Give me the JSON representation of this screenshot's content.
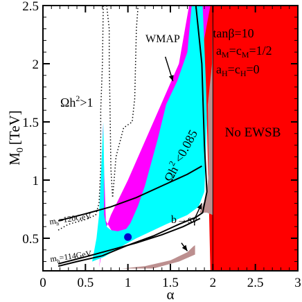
{
  "chart_data": {
    "type": "area",
    "xlabel": "α",
    "ylabel": "M₀ [TeV]",
    "ylabel_base": "M",
    "ylabel_sub": "0",
    "ylabel_unit": "[TeV]",
    "xlim": [
      0,
      3
    ],
    "ylim": [
      0.22,
      2.5
    ],
    "x_ticks": [
      0,
      0.5,
      1,
      1.5,
      2,
      2.5,
      3
    ],
    "x_tick_labels": [
      "0",
      "0.5",
      "1",
      "1.5",
      "2",
      "2.5",
      "3"
    ],
    "y_ticks": [
      0.5,
      1,
      1.5,
      2,
      2.5
    ],
    "y_tick_labels": [
      "0.5",
      "1",
      "1.5",
      "2",
      "2.5"
    ],
    "grid": false,
    "colors": {
      "no_ewsb": "#ff0000",
      "wmap_band": "#00ffff",
      "wmap_edge": "#ff00ff",
      "bsgamma": "#bc8f8f",
      "marker": "#0000cc",
      "lines": "#000000"
    },
    "annotations": {
      "params_line1": "tanβ=10",
      "params_line2": "aₘ=cₘ=1/2",
      "params_line2_a": "a",
      "params_line2_sub1": "M",
      "params_line2_mid": "=c",
      "params_line2_sub2": "M",
      "params_line2_end": "=1/2",
      "params_line3_a": "a",
      "params_line3_sub1": "H",
      "params_line3_mid": "=c",
      "params_line3_sub2": "H",
      "params_line3_end": "=0",
      "no_ewsb": "No EWSB",
      "wmap": "WMAP",
      "omega_gt1": "Ωh",
      "omega_gt1_sup": "2",
      "omega_gt1_end": ">1",
      "omega_lt": "Ωh",
      "omega_lt_sup": "2",
      "omega_lt_end": "<0.085",
      "bsg": "b→sγ",
      "mh120_m": "m",
      "mh120_sub": "h",
      "mh120_end": "=120GeV",
      "mh114_m": "m",
      "mh114_sub": "h",
      "mh114_end": "=114GeV"
    },
    "regions": {
      "no_ewsb": [
        [
          2.0,
          0.22
        ],
        [
          3.0,
          0.22
        ],
        [
          3.0,
          2.5
        ],
        [
          2.0,
          2.5
        ]
      ],
      "no_ewsb_notch": [
        [
          1.87,
          2.5
        ],
        [
          2.0,
          2.5
        ],
        [
          2.0,
          0.22
        ],
        [
          1.97,
          0.22
        ],
        [
          1.95,
          0.9
        ],
        [
          1.93,
          1.5
        ],
        [
          1.9,
          2.0
        ]
      ],
      "bsgamma_upper": [
        [
          1.84,
          0.72
        ],
        [
          1.92,
          0.85
        ],
        [
          1.95,
          1.05
        ],
        [
          1.94,
          1.65
        ],
        [
          1.99,
          2.0
        ],
        [
          2.0,
          2.5
        ],
        [
          2.0,
          0.7
        ],
        [
          1.93,
          0.72
        ]
      ],
      "bsgamma_lower": [
        [
          0.93,
          0.24
        ],
        [
          1.2,
          0.26
        ],
        [
          1.5,
          0.31
        ],
        [
          1.7,
          0.38
        ],
        [
          1.77,
          0.43
        ],
        [
          1.79,
          0.44
        ],
        [
          1.79,
          0.36
        ],
        [
          1.6,
          0.3
        ],
        [
          1.3,
          0.24
        ]
      ],
      "magenta_outer": [
        [
          0.66,
          0.25
        ],
        [
          0.72,
          0.6
        ],
        [
          0.7,
          1.5
        ],
        [
          0.74,
          0.65
        ],
        [
          0.82,
          0.55
        ],
        [
          0.94,
          0.52
        ],
        [
          0.99,
          0.52
        ],
        [
          1.05,
          0.6
        ],
        [
          1.15,
          0.67
        ],
        [
          1.3,
          0.85
        ],
        [
          1.55,
          1.3
        ],
        [
          1.75,
          1.75
        ],
        [
          1.87,
          2.1
        ],
        [
          1.97,
          2.5
        ],
        [
          1.72,
          2.5
        ],
        [
          1.6,
          2.0
        ],
        [
          1.45,
          1.75
        ],
        [
          1.3,
          1.5
        ],
        [
          1.15,
          1.25
        ],
        [
          1.0,
          1.0
        ],
        [
          0.9,
          0.85
        ],
        [
          0.8,
          0.7
        ],
        [
          0.75,
          0.6
        ]
      ],
      "cyan_band": [
        [
          0.58,
          0.3
        ],
        [
          0.72,
          0.34
        ],
        [
          0.95,
          0.44
        ],
        [
          1.1,
          0.5
        ],
        [
          1.45,
          0.62
        ],
        [
          1.7,
          0.7
        ],
        [
          1.83,
          0.77
        ],
        [
          1.9,
          0.9
        ],
        [
          1.93,
          1.5
        ],
        [
          1.92,
          1.8
        ],
        [
          1.88,
          2.5
        ],
        [
          1.75,
          2.5
        ],
        [
          1.7,
          2.1
        ],
        [
          1.58,
          1.85
        ],
        [
          1.45,
          1.65
        ],
        [
          1.35,
          1.35
        ],
        [
          1.2,
          0.95
        ],
        [
          1.12,
          0.78
        ],
        [
          1.03,
          0.63
        ],
        [
          0.98,
          0.58
        ],
        [
          0.88,
          0.56
        ],
        [
          0.8,
          0.57
        ],
        [
          0.75,
          0.6
        ],
        [
          0.72,
          0.7
        ],
        [
          0.72,
          1.1
        ],
        [
          0.71,
          1.5
        ],
        [
          0.68,
          1.0
        ],
        [
          0.66,
          0.7
        ],
        [
          0.63,
          0.5
        ]
      ]
    },
    "curves": {
      "omega_lt": [
        [
          0.18,
          0.26
        ],
        [
          0.4,
          0.3
        ],
        [
          0.7,
          0.35
        ],
        [
          1.0,
          0.44
        ],
        [
          1.3,
          0.52
        ],
        [
          1.6,
          0.62
        ],
        [
          1.8,
          0.68
        ],
        [
          1.88,
          0.72
        ],
        [
          1.93,
          0.9
        ],
        [
          1.9,
          1.3
        ],
        [
          1.87,
          2.0
        ],
        [
          1.8,
          2.5
        ]
      ],
      "mh120": [
        [
          0.18,
          0.65
        ],
        [
          0.5,
          0.71
        ],
        [
          0.8,
          0.77
        ],
        [
          1.1,
          0.85
        ],
        [
          1.4,
          0.95
        ],
        [
          1.7,
          1.05
        ],
        [
          1.87,
          1.12
        ]
      ],
      "mh114": [
        [
          0.18,
          0.28
        ],
        [
          0.5,
          0.34
        ],
        [
          0.8,
          0.4
        ],
        [
          1.1,
          0.46
        ],
        [
          1.4,
          0.53
        ],
        [
          1.65,
          0.6
        ],
        [
          1.85,
          0.67
        ]
      ],
      "omega_gt1_left": [
        [
          0.18,
          0.57
        ],
        [
          0.3,
          0.62
        ],
        [
          0.5,
          0.66
        ],
        [
          0.62,
          0.7
        ],
        [
          0.66,
          0.8
        ],
        [
          0.68,
          1.1
        ],
        [
          0.68,
          1.6
        ],
        [
          0.7,
          2.0
        ],
        [
          0.71,
          2.5
        ]
      ],
      "omega_gt1_right": [
        [
          0.75,
          2.5
        ],
        [
          0.78,
          2.3
        ],
        [
          0.78,
          2.0
        ],
        [
          0.79,
          1.6
        ],
        [
          0.8,
          1.1
        ],
        [
          0.82,
          0.85
        ],
        [
          0.86,
          1.2
        ],
        [
          0.95,
          1.45
        ],
        [
          1.05,
          1.5
        ],
        [
          1.08,
          1.7
        ],
        [
          1.1,
          2.3
        ],
        [
          1.12,
          2.5
        ]
      ]
    },
    "marker_point": [
      1.0,
      0.51
    ],
    "arrows": [
      {
        "from": [
          1.44,
          2.06
        ],
        "to": [
          1.53,
          1.85
        ]
      },
      {
        "from": [
          1.78,
          0.66
        ],
        "to": [
          1.87,
          0.8
        ]
      },
      {
        "from": [
          1.63,
          0.46
        ],
        "to": [
          1.7,
          0.39
        ]
      }
    ]
  }
}
